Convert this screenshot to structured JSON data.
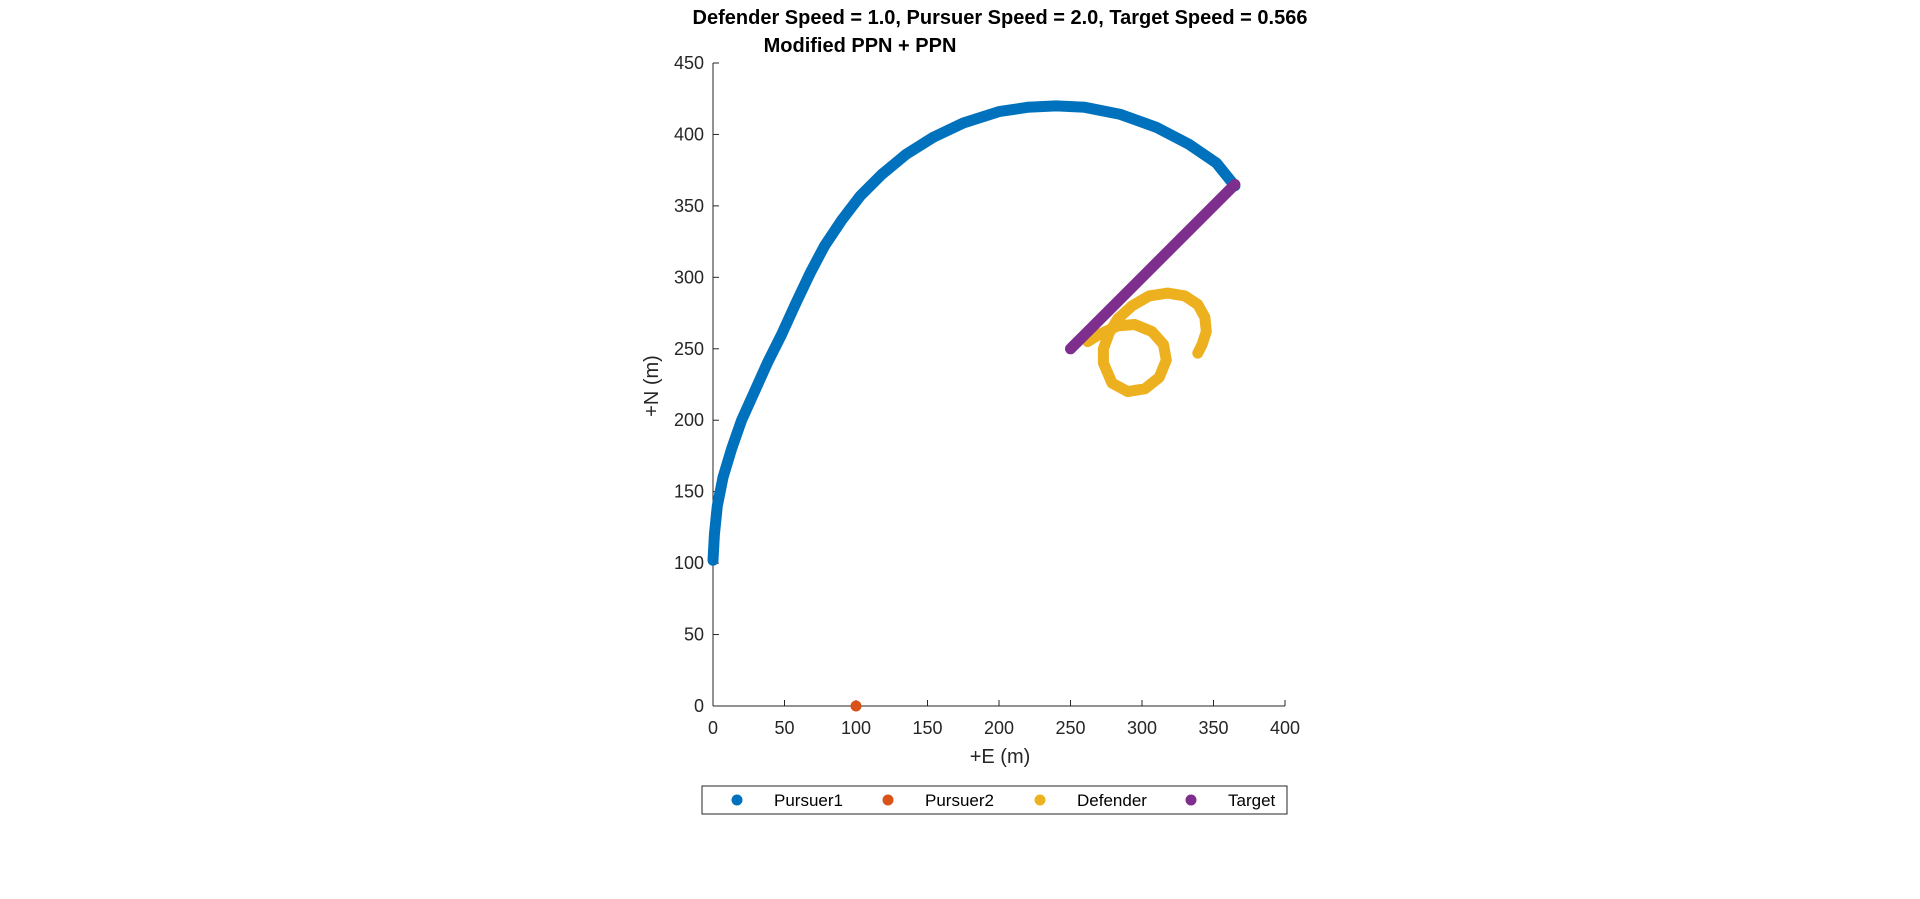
{
  "chart_data": {
    "type": "scatter",
    "title_line1": "Defender Speed = 1.0, Pursuer Speed = 2.0, Target Speed = 0.566",
    "title_line2": "Modified PPN + PPN",
    "xlabel": "+E (m)",
    "ylabel": "+N (m)",
    "xlim": [
      0,
      400
    ],
    "ylim": [
      0,
      450
    ],
    "xticks": [
      0,
      50,
      100,
      150,
      200,
      250,
      300,
      350,
      400
    ],
    "yticks": [
      0,
      50,
      100,
      150,
      200,
      250,
      300,
      350,
      400,
      450
    ],
    "grid": false,
    "legend_position": "bottom-outside-horizontal",
    "series": [
      {
        "name": "Pursuer1",
        "color": "#0072BD",
        "points": [
          [
            0,
            102
          ],
          [
            1,
            120
          ],
          [
            3,
            140
          ],
          [
            7,
            160
          ],
          [
            13,
            180
          ],
          [
            20,
            200
          ],
          [
            29,
            220
          ],
          [
            38,
            240
          ],
          [
            48,
            260
          ],
          [
            58,
            282
          ],
          [
            68,
            303
          ],
          [
            78,
            322
          ],
          [
            90,
            340
          ],
          [
            103,
            357
          ],
          [
            118,
            372
          ],
          [
            135,
            386
          ],
          [
            154,
            398
          ],
          [
            175,
            408
          ],
          [
            200,
            416
          ],
          [
            220,
            419
          ],
          [
            240,
            420
          ],
          [
            260,
            419
          ],
          [
            285,
            414
          ],
          [
            310,
            405
          ],
          [
            333,
            393
          ],
          [
            352,
            380
          ],
          [
            365,
            364
          ]
        ]
      },
      {
        "name": "Pursuer2",
        "color": "#D95319",
        "points": [
          [
            100,
            0
          ]
        ]
      },
      {
        "name": "Defender",
        "color": "#EDB120",
        "points": [
          [
            339,
            247
          ],
          [
            342,
            253
          ],
          [
            345,
            262
          ],
          [
            344,
            272
          ],
          [
            339,
            281
          ],
          [
            330,
            287
          ],
          [
            318,
            289
          ],
          [
            305,
            287
          ],
          [
            293,
            280
          ],
          [
            283,
            271
          ],
          [
            277,
            261
          ],
          [
            273,
            250
          ],
          [
            273,
            240
          ],
          [
            279,
            226
          ],
          [
            290,
            220
          ],
          [
            302,
            222
          ],
          [
            312,
            230
          ],
          [
            317,
            242
          ],
          [
            315,
            253
          ],
          [
            307,
            262
          ],
          [
            295,
            267
          ],
          [
            283,
            266
          ],
          [
            270,
            260
          ],
          [
            262,
            255
          ]
        ]
      },
      {
        "name": "Target",
        "color": "#7E2F8E",
        "points": [
          [
            250,
            250
          ],
          [
            365,
            365
          ]
        ]
      }
    ]
  }
}
